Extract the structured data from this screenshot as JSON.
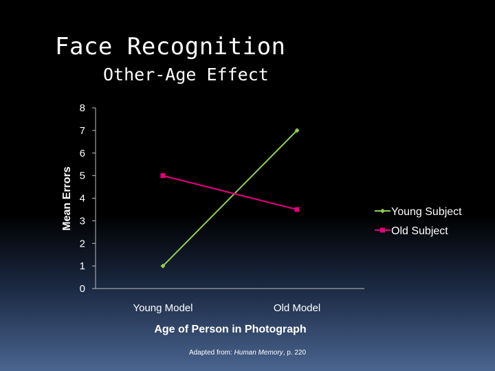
{
  "slide": {
    "title": "Face Recognition",
    "subtitle": "Other-Age Effect"
  },
  "footer": {
    "prefix": "Adapted from: ",
    "source": "Human Memory",
    "suffix": ", p. 220"
  },
  "colors": {
    "young_subject": "#92d050",
    "old_subject": "#e6007e",
    "axis": "#bfbfbf"
  },
  "chart_data": {
    "type": "line",
    "categories": [
      "Young Model",
      "Old Model"
    ],
    "series": [
      {
        "name": "Young Subject",
        "values": [
          1,
          7
        ],
        "color": "#92d050",
        "marker": "diamond"
      },
      {
        "name": "Old Subject",
        "values": [
          5,
          3.5
        ],
        "color": "#e6007e",
        "marker": "square"
      }
    ],
    "xlabel": "Age of Person in Photograph",
    "ylabel": "Mean Errors",
    "ylim": [
      0,
      8
    ],
    "yticks": [
      "0",
      "1",
      "2",
      "3",
      "4",
      "5",
      "6",
      "7",
      "8"
    ],
    "grid": false,
    "legend_position": "right"
  }
}
